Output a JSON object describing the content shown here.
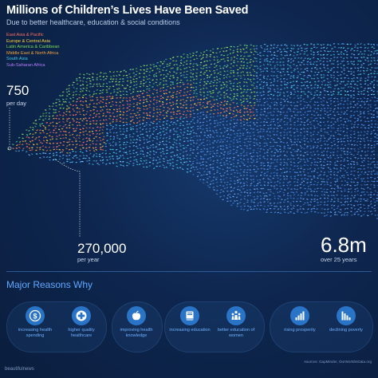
{
  "header": {
    "title": "Millions of Children’s Lives Have Been Saved",
    "subtitle": "Due to better healthcare, education & social conditions"
  },
  "legend": [
    {
      "label": "East Asia & Pacific",
      "color": "#ff6f5e"
    },
    {
      "label": "Europe & Central Asia",
      "color": "#ffd23f"
    },
    {
      "label": "Latin America & Caribbean",
      "color": "#7ed957"
    },
    {
      "label": "Middle East & North Africa",
      "color": "#f2a33a"
    },
    {
      "label": "South Asia",
      "color": "#3fc7e8"
    },
    {
      "label": "Sub-Saharan Africa",
      "color": "#b67cff"
    }
  ],
  "stats": {
    "per_day_value": "750",
    "per_day_label": "per day",
    "per_year_value": "270,000",
    "per_year_label": "per year",
    "total_value": "6.8m",
    "total_label": "over 25 years"
  },
  "chart_data": {
    "type": "area",
    "title": "Millions of Children’s Lives Have Been Saved",
    "subtitle": "Due to better healthcare, education & social conditions",
    "series": [
      {
        "name": "East Asia & Pacific"
      },
      {
        "name": "Europe & Central Asia"
      },
      {
        "name": "Latin America & Caribbean"
      },
      {
        "name": "Middle East & North Africa"
      },
      {
        "name": "South Asia"
      },
      {
        "name": "Sub-Saharan Africa"
      }
    ],
    "annotations": [
      "750 per day",
      "270,000 per year",
      "6.8m over 25 years"
    ],
    "grid": false,
    "legend_position": "top-left"
  },
  "reasons": {
    "title": "Major Reasons Why",
    "items": [
      {
        "label": "increasing health spending",
        "icon": "dollar-icon"
      },
      {
        "label": "higher quality healthcare",
        "icon": "medical-cross-icon"
      },
      {
        "label": "improving health knowledge",
        "icon": "apple-icon"
      },
      {
        "label": "increasing education",
        "icon": "book-icon"
      },
      {
        "label": "better education of women",
        "icon": "people-group-icon"
      },
      {
        "label": "rising prosperity",
        "icon": "bar-chart-icon"
      },
      {
        "label": "declining poverty",
        "icon": "poverty-icon"
      }
    ]
  },
  "footer": {
    "brand": "beautifulnews",
    "sources": "sources: GapMinder, OurWorldInData.org"
  },
  "colors": {
    "accent": "#5fa8ff",
    "icon_circle": "#2a74c8",
    "background": "#0d2346"
  }
}
